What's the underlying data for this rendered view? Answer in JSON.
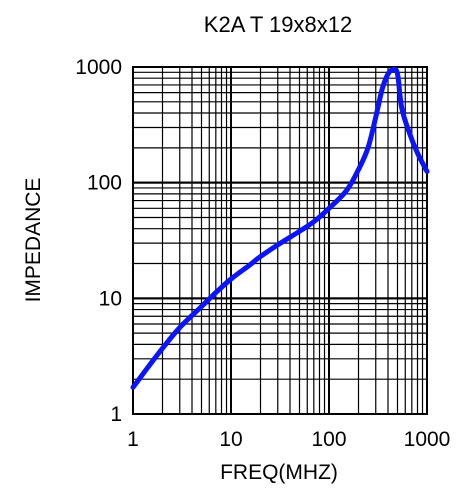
{
  "chart_data": {
    "type": "line",
    "title": "K2A T 19x8x12",
    "xlabel": "FREQ(MHZ)",
    "ylabel": "IMPEDANCE",
    "x_scale": "log",
    "y_scale": "log",
    "xlim": [
      1,
      1000
    ],
    "ylim": [
      1,
      1000
    ],
    "x_ticks": [
      "1",
      "10",
      "100",
      "1000"
    ],
    "y_ticks": [
      "1",
      "10",
      "100",
      "1000"
    ],
    "grid": true,
    "colors": {
      "curve": "#0a14ff",
      "grid": "#000000"
    },
    "series": [
      {
        "values": [
          [
            1,
            1.7
          ],
          [
            1.5,
            2.7
          ],
          [
            2,
            3.7
          ],
          [
            3,
            5.6
          ],
          [
            5,
            8.5
          ],
          [
            7,
            11.2
          ],
          [
            10,
            14.7
          ],
          [
            15,
            19
          ],
          [
            20,
            23
          ],
          [
            30,
            29
          ],
          [
            50,
            38
          ],
          [
            70,
            46
          ],
          [
            100,
            60
          ],
          [
            150,
            85
          ],
          [
            200,
            130
          ],
          [
            250,
            200
          ],
          [
            300,
            370
          ],
          [
            350,
            650
          ],
          [
            400,
            870
          ],
          [
            450,
            950
          ],
          [
            500,
            870
          ],
          [
            550,
            450
          ],
          [
            650,
            280
          ],
          [
            800,
            180
          ],
          [
            1000,
            125
          ]
        ]
      }
    ]
  }
}
